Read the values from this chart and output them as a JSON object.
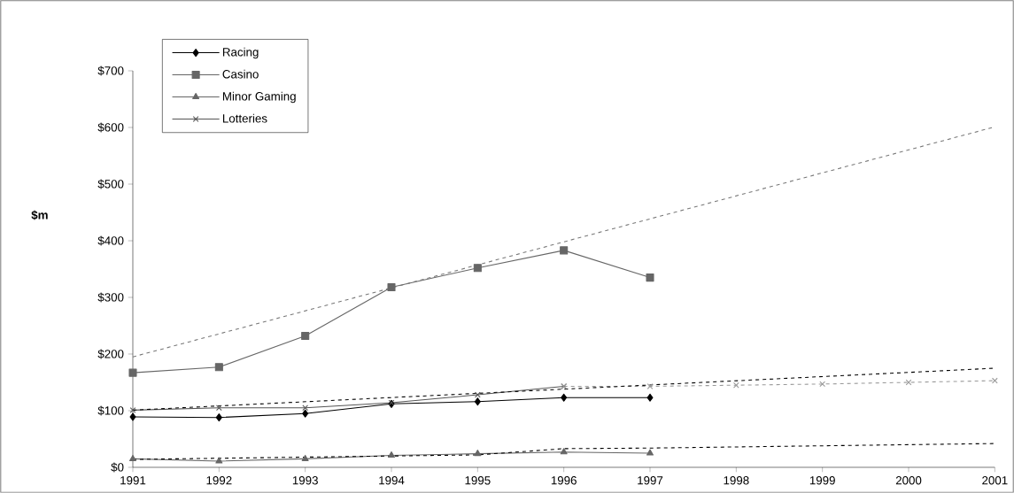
{
  "chart_data": {
    "type": "line",
    "ylabel": "$m",
    "x": [
      1991,
      1992,
      1993,
      1994,
      1995,
      1996,
      1997,
      1998,
      1999,
      2000,
      2001
    ],
    "xlim": [
      1991,
      2001
    ],
    "xticks": [
      1991,
      1992,
      1993,
      1994,
      1995,
      1996,
      1997,
      1998,
      1999,
      2000,
      2001
    ],
    "ylim": [
      0,
      700
    ],
    "yticks": [
      {
        "value": 0,
        "label": "$0"
      },
      {
        "value": 100,
        "label": "$100"
      },
      {
        "value": 200,
        "label": "$200"
      },
      {
        "value": 300,
        "label": "$300"
      },
      {
        "value": 400,
        "label": "$400"
      },
      {
        "value": 500,
        "label": "$500"
      },
      {
        "value": 600,
        "label": "$600"
      },
      {
        "value": 700,
        "label": "$700"
      }
    ],
    "legend": "top left",
    "line_style": "solid",
    "series": [
      {
        "name": "Racing",
        "color": "#000000",
        "marker": "diamond",
        "values": [
          89,
          88,
          95,
          112,
          116,
          123,
          123,
          null,
          null,
          null,
          null
        ]
      },
      {
        "name": "Casino",
        "color": "#666666",
        "marker": "square",
        "values": [
          167,
          177,
          232,
          318,
          352,
          383,
          335,
          null,
          null,
          null,
          null
        ]
      },
      {
        "name": "Minor Gaming",
        "color": "#666666",
        "marker": "triangle",
        "values": [
          15,
          11,
          15,
          21,
          24,
          27,
          25,
          null,
          null,
          null,
          null
        ]
      },
      {
        "name": "Lotteries",
        "color": "#555555",
        "marker": "cross",
        "values": [
          101,
          105,
          105,
          114,
          128,
          143,
          null,
          null,
          null,
          null,
          null
        ]
      },
      {
        "color": "#999999",
        "marker": "cross",
        "line_style": "dashed",
        "values": [
          null,
          null,
          null,
          null,
          null,
          143,
          143,
          145,
          147,
          150,
          153
        ]
      },
      {
        "color": "#777777",
        "marker": "none",
        "line_style": "dashed",
        "x": [
          1991,
          2001
        ],
        "values": [
          195,
          601
        ]
      },
      {
        "color": "#000000",
        "marker": "none",
        "line_style": "dashed",
        "x": [
          1991,
          2001
        ],
        "values": [
          101,
          175
        ]
      },
      {
        "color": "#000000",
        "marker": "none",
        "line_style": "dashed",
        "x": [
          1991,
          1995,
          1996,
          1997,
          2001
        ],
        "values": [
          14,
          22,
          33,
          34,
          42
        ]
      }
    ]
  }
}
